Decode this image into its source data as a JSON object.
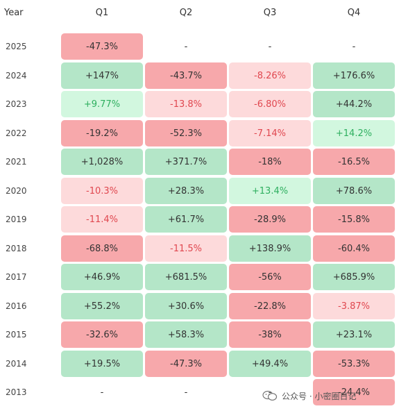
{
  "chart_data": {
    "type": "heatmap",
    "columns": [
      "Year",
      "Q1",
      "Q2",
      "Q3",
      "Q4"
    ],
    "rows": [
      {
        "year": "2025",
        "cells": [
          "-47.3%",
          "-",
          "-",
          "-"
        ],
        "values": [
          -47.3,
          null,
          null,
          null
        ]
      },
      {
        "year": "2024",
        "cells": [
          "+147%",
          "-43.7%",
          "-8.26%",
          "+176.6%"
        ],
        "values": [
          147,
          -43.7,
          -8.26,
          176.6
        ]
      },
      {
        "year": "2023",
        "cells": [
          "+9.77%",
          "-13.8%",
          "-6.80%",
          "+44.2%"
        ],
        "values": [
          9.77,
          -13.8,
          -6.8,
          44.2
        ]
      },
      {
        "year": "2022",
        "cells": [
          "-19.2%",
          "-52.3%",
          "-7.14%",
          "+14.2%"
        ],
        "values": [
          -19.2,
          -52.3,
          -7.14,
          14.2
        ]
      },
      {
        "year": "2021",
        "cells": [
          "+1,028%",
          "+371.7%",
          "-18%",
          "-16.5%"
        ],
        "values": [
          1028,
          371.7,
          -18,
          -16.5
        ]
      },
      {
        "year": "2020",
        "cells": [
          "-10.3%",
          "+28.3%",
          "+13.4%",
          "+78.6%"
        ],
        "values": [
          -10.3,
          28.3,
          13.4,
          78.6
        ]
      },
      {
        "year": "2019",
        "cells": [
          "-11.4%",
          "+61.7%",
          "-28.9%",
          "-15.8%"
        ],
        "values": [
          -11.4,
          61.7,
          -28.9,
          -15.8
        ]
      },
      {
        "year": "2018",
        "cells": [
          "-68.8%",
          "-11.5%",
          "+138.9%",
          "-60.4%"
        ],
        "values": [
          -68.8,
          -11.5,
          138.9,
          -60.4
        ]
      },
      {
        "year": "2017",
        "cells": [
          "+46.9%",
          "+681.5%",
          "-56%",
          "+685.9%"
        ],
        "values": [
          46.9,
          681.5,
          -56,
          685.9
        ]
      },
      {
        "year": "2016",
        "cells": [
          "+55.2%",
          "+30.6%",
          "-22.8%",
          "-3.87%"
        ],
        "values": [
          55.2,
          30.6,
          -22.8,
          -3.87
        ]
      },
      {
        "year": "2015",
        "cells": [
          "-32.6%",
          "+58.3%",
          "-38%",
          "+23.1%"
        ],
        "values": [
          -32.6,
          58.3,
          -38,
          23.1
        ]
      },
      {
        "year": "2014",
        "cells": [
          "+19.5%",
          "-47.3%",
          "+49.4%",
          "-53.3%"
        ],
        "values": [
          19.5,
          -47.3,
          49.4,
          -53.3
        ]
      },
      {
        "year": "2013",
        "cells": [
          "-",
          "-",
          "-",
          "-24.4%"
        ],
        "values": [
          null,
          null,
          null,
          -24.4
        ]
      }
    ],
    "colors": {
      "strong_positive_bg": "#b4e6c8",
      "weak_positive_bg": "#d2f7df",
      "strong_negative_bg": "#f7a8ab",
      "weak_negative_bg": "#fddadb",
      "weak_positive_text": "#2eaf5f",
      "weak_negative_text": "#e0474f",
      "default_text": "#333333"
    }
  },
  "watermark": {
    "text": "公众号 · 小密圈日记",
    "icon": "wechat-icon"
  }
}
